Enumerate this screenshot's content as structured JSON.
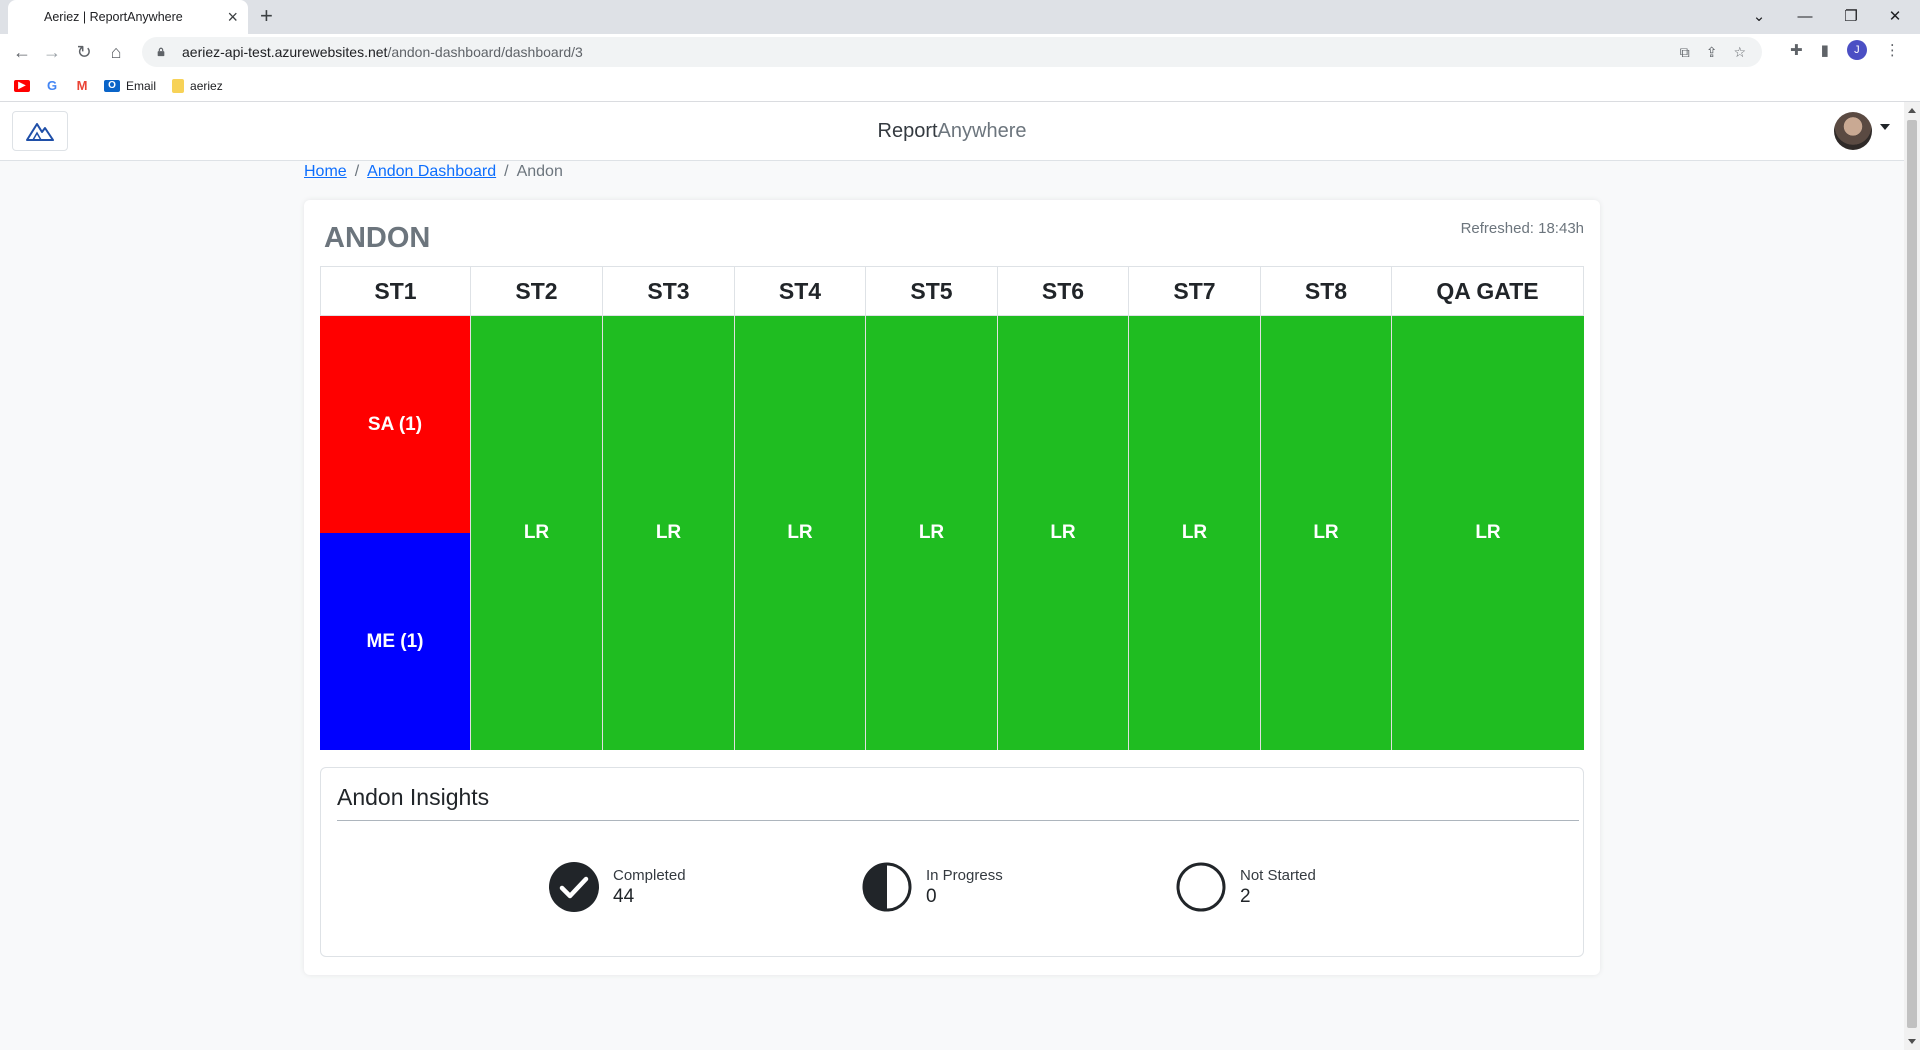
{
  "browser": {
    "tab_title": "Aeriez | ReportAnywhere",
    "url_host": "aeriez-api-test.azurewebsites.net",
    "url_path": "/andon-dashboard/dashboard/3",
    "profile_initial": "J",
    "bookmarks": [
      {
        "label": "",
        "icon": "youtube-icon"
      },
      {
        "label": "",
        "icon": "google-icon"
      },
      {
        "label": "",
        "icon": "gmail-icon"
      },
      {
        "label": "Email",
        "icon": "outlook-icon"
      },
      {
        "label": "aeriez",
        "icon": "folder-icon"
      }
    ]
  },
  "app": {
    "brand_primary": "Report",
    "brand_secondary": "Anywhere"
  },
  "breadcrumb": {
    "home": "Home",
    "dashboard": "Andon Dashboard",
    "current": "Andon"
  },
  "card": {
    "title": "ANDON",
    "refreshed": "Refreshed: 18:43h"
  },
  "colors": {
    "red": "#ff0000",
    "blue": "#0000ff",
    "green": "#1fbd21"
  },
  "stations": [
    {
      "name": "ST1",
      "cells": [
        {
          "label": "SA (1)",
          "color": "#ff0000"
        },
        {
          "label": "ME (1)",
          "color": "#0000ff"
        }
      ]
    },
    {
      "name": "ST2",
      "cells": [
        {
          "label": "LR",
          "color": "#1fbd21"
        }
      ]
    },
    {
      "name": "ST3",
      "cells": [
        {
          "label": "LR",
          "color": "#1fbd21"
        }
      ]
    },
    {
      "name": "ST4",
      "cells": [
        {
          "label": "LR",
          "color": "#1fbd21"
        }
      ]
    },
    {
      "name": "ST5",
      "cells": [
        {
          "label": "LR",
          "color": "#1fbd21"
        }
      ]
    },
    {
      "name": "ST6",
      "cells": [
        {
          "label": "LR",
          "color": "#1fbd21"
        }
      ]
    },
    {
      "name": "ST7",
      "cells": [
        {
          "label": "LR",
          "color": "#1fbd21"
        }
      ]
    },
    {
      "name": "ST8",
      "cells": [
        {
          "label": "LR",
          "color": "#1fbd21"
        }
      ]
    },
    {
      "name": "QA GATE",
      "cells": [
        {
          "label": "LR",
          "color": "#1fbd21"
        }
      ]
    }
  ],
  "insights": {
    "title": "Andon Insights",
    "completed": {
      "label": "Completed",
      "value": "44"
    },
    "in_progress": {
      "label": "In Progress",
      "value": "0"
    },
    "not_started": {
      "label": "Not Started",
      "value": "2"
    }
  }
}
